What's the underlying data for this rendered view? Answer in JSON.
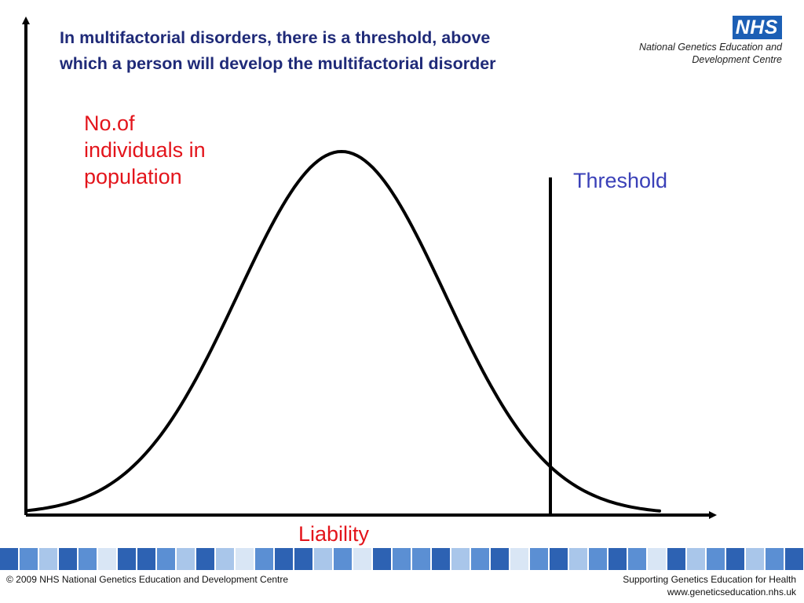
{
  "slide": {
    "title_lines": [
      "In multifactorial disorders, there is a threshold, above",
      "which a person will develop the multifactorial disorder"
    ],
    "title_color": "#1f2a78"
  },
  "logo": {
    "badge": "NHS",
    "org_lines": [
      "National Genetics Education and",
      "Development Centre"
    ],
    "badge_color": "#1c5fb5"
  },
  "diagram": {
    "y_axis_label_lines": [
      "No.of",
      "individuals in",
      "population"
    ],
    "x_axis_label": "Liability",
    "threshold_label": "Threshold",
    "curve": "normal-distribution",
    "label_color": "#e3141b",
    "threshold_color": "#3a40b8"
  },
  "footer": {
    "copyright": "© 2009 NHS National Genetics Education and Development Centre",
    "tagline": "Supporting Genetics Education for Health",
    "url": "www.geneticseducation.nhs.uk",
    "band_colors": [
      "#2d62b3",
      "#5b8fd3",
      "#a9c6ea",
      "#d9e6f5"
    ]
  }
}
